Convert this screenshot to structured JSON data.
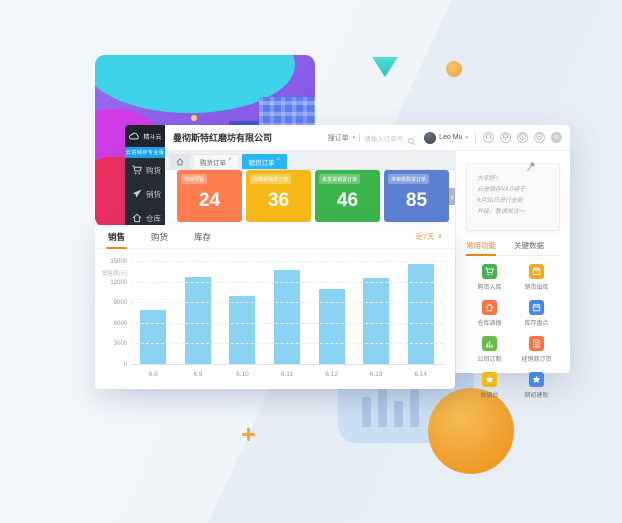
{
  "accent_colors": {
    "orange_accent": "#f08519",
    "active_tab_blue": "#29b6f0",
    "bar_blue": "#8ad2f2",
    "sidebar_dark": "#272b33",
    "banner_blue": "#1c9fe5"
  },
  "window": {
    "logo": {
      "text": "精斗云",
      "icon": "cloud"
    },
    "sidebar": {
      "banner": "云进销存专业版",
      "items": [
        {
          "label": "购货",
          "icon": "cart"
        },
        {
          "label": "销货",
          "icon": "plane"
        },
        {
          "label": "仓库",
          "icon": "home"
        },
        {
          "label": "资金",
          "icon": "coin"
        }
      ]
    },
    "header": {
      "company": "曼彻斯特红磨坊有限公司",
      "search_category": "搜订单",
      "search_placeholder": "请输入订单号",
      "user": "Leo Mu",
      "icons": [
        "headset",
        "bell",
        "info",
        "play",
        "gear"
      ]
    },
    "tabs": [
      {
        "label": "首页",
        "icon": "home",
        "active": false,
        "closable": false
      },
      {
        "label": "购货订单",
        "active": false,
        "closable": true
      },
      {
        "label": "销货订单",
        "active": true,
        "closable": true
      }
    ],
    "cards_next_arrow": "›"
  },
  "stat_cards": [
    {
      "label": "库存预警",
      "value": "24",
      "color": "#ff7e50"
    },
    {
      "label": "未审核销货订单",
      "value": "36",
      "color": "#f7b917"
    },
    {
      "label": "未发货销货订单",
      "value": "46",
      "color": "#3cb54c"
    },
    {
      "label": "未审核购货订单",
      "value": "85",
      "color": "#5b80d2"
    }
  ],
  "notice": {
    "lines": [
      "大家好！",
      "云进销存V4.0将于",
      "6月30日进行全新",
      "升级，敬请关注～"
    ]
  },
  "quick_panel": {
    "tabs": [
      {
        "label": "常用功能",
        "active": true
      },
      {
        "label": "关键数据",
        "active": false
      }
    ],
    "items": [
      {
        "label": "购货入库",
        "icon": "cart",
        "color": "#4caf50"
      },
      {
        "label": "销货出库",
        "icon": "box",
        "color": "#f5a623"
      },
      {
        "label": "仓库调拨",
        "icon": "home",
        "color": "#ff7043"
      },
      {
        "label": "库存盘点",
        "icon": "calendar",
        "color": "#4a86e8"
      },
      {
        "label": "公司订制",
        "icon": "chartbars",
        "color": "#66bb4a"
      },
      {
        "label": "经销商订货",
        "icon": "doc",
        "color": "#ff7043"
      },
      {
        "label": "收银台",
        "icon": "star",
        "color": "#f5b917"
      },
      {
        "label": "期初建账",
        "icon": "star",
        "color": "#4a86e8"
      }
    ]
  },
  "chart_card": {
    "tabs": [
      {
        "label": "销售",
        "active": true
      },
      {
        "label": "购货",
        "active": false
      },
      {
        "label": "库存",
        "active": false
      }
    ],
    "range_label": "近7天"
  },
  "chart_data": {
    "type": "bar",
    "categories": [
      "6.8",
      "6.9",
      "6.10",
      "6.11",
      "6.12",
      "6.13",
      "6.14"
    ],
    "values": [
      8000,
      12800,
      10000,
      13800,
      11000,
      12700,
      14700
    ],
    "title": "",
    "xlabel": "",
    "ylabel": "销售额(元)",
    "ylim": [
      0,
      15000
    ],
    "yticks": [
      0,
      3000,
      6000,
      9000,
      12000,
      15000
    ],
    "grid": true,
    "bar_color": "#8ad2f2"
  }
}
